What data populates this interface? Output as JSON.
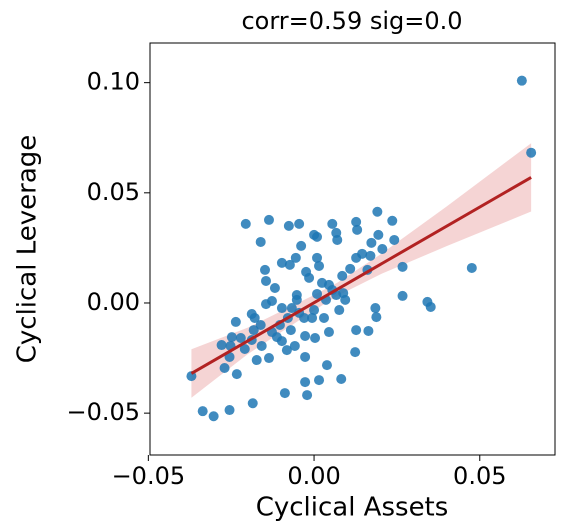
{
  "chart_data": {
    "type": "scatter",
    "title": "corr=0.59 sig=0.0",
    "x_label": "Cyclical Assets",
    "y_label": "Cyclical Leverage",
    "xlim": [
      -0.0495,
      0.0727
    ],
    "ylim": [
      -0.069,
      0.118
    ],
    "xticks": [
      {
        "value": -0.05,
        "label": "−0.05"
      },
      {
        "value": 0,
        "label": "0.00"
      },
      {
        "value": 0.05,
        "label": "0.05"
      }
    ],
    "yticks": [
      {
        "value": -0.05,
        "label": "−0.05"
      },
      {
        "value": 0,
        "label": "0.00"
      },
      {
        "value": 0.05,
        "label": "0.05"
      },
      {
        "value": 0.1,
        "label": "0.10"
      }
    ],
    "points": {
      "color": "#1f77b4",
      "x": [
        0.0627,
        0.0655,
        -0.037,
        -0.0336,
        -0.0303,
        -0.0255,
        -0.0185,
        -0.0206,
        -0.0136,
        -0.0076,
        -0.0045,
        -0.0161,
        0.0,
        0.0009,
        0.0055,
        0.0067,
        0.007,
        0.0127,
        0.013,
        0.0191,
        0.0194,
        0.0236,
        0.0242,
        0.0173,
        0.0206,
        0.0267,
        0.0476,
        0.0267,
        0.0342,
        0.0352,
        0.0185,
        0.0188,
        0.0164,
        0.0127,
        0.0124,
        0.0082,
        0.0039,
        0.0015,
        -0.0027,
        -0.0027,
        -0.0088,
        -0.0021,
        -0.0136,
        -0.0158,
        -0.0173,
        -0.0209,
        -0.0252,
        -0.0255,
        -0.027,
        -0.0233,
        -0.0127,
        -0.0127,
        -0.0148,
        -0.0145,
        -0.0118,
        -0.0097,
        -0.0073,
        -0.0055,
        -0.0039,
        -0.0024,
        -0.0015,
        0.0009,
        0.0015,
        0.0024,
        0.0045,
        0.0055,
        0.0067,
        0.0085,
        0.0109,
        0.0127,
        0.0145,
        0.017,
        0.0161,
        0.0094,
        0.0088,
        0.0076,
        0.0036,
        0.0009,
        0.0,
        -0.003,
        -0.0052,
        -0.0067,
        -0.0079,
        -0.0103,
        -0.0097,
        -0.0082,
        -0.0058,
        -0.0112,
        -0.007,
        -0.0052,
        -0.0045,
        -0.0006,
        0.003,
        0.0045,
        0.0003,
        -0.0027,
        -0.0161,
        -0.0182,
        -0.0188,
        -0.0179,
        -0.0221,
        -0.0248,
        -0.0279,
        -0.0188,
        -0.0236,
        -0.0145,
        -0.0097
      ],
      "y": [
        0.1009,
        0.0682,
        -0.0332,
        -0.0491,
        -0.0514,
        -0.0486,
        -0.0455,
        0.0359,
        0.0377,
        0.035,
        0.0359,
        0.0277,
        0.0309,
        0.03,
        0.0359,
        0.0318,
        0.0286,
        0.0368,
        0.0332,
        0.0414,
        0.0309,
        0.0373,
        0.0286,
        0.0273,
        0.0245,
        0.0164,
        0.0159,
        0.0032,
        0.0005,
        -0.0018,
        -0.0023,
        -0.0064,
        -0.0127,
        -0.0123,
        -0.0223,
        -0.0345,
        -0.0282,
        -0.035,
        -0.0359,
        -0.0245,
        -0.0409,
        -0.0418,
        -0.025,
        -0.0195,
        -0.0259,
        -0.0209,
        -0.0195,
        -0.0245,
        -0.0295,
        -0.0323,
        -0.0132,
        0.0009,
        0.015,
        0.01,
        0.0068,
        0.0182,
        0.0173,
        0.0205,
        0.0259,
        0.0141,
        0.0114,
        0.0205,
        0.0168,
        0.0091,
        0.0082,
        0.0059,
        0.0036,
        0.0123,
        0.0155,
        0.0205,
        0.0223,
        0.0214,
        0.015,
        0.0014,
        0.0045,
        -0.0032,
        0.0014,
        0.0041,
        -0.0032,
        -0.0068,
        0.0014,
        -0.0023,
        -0.0068,
        -0.01,
        -0.0173,
        -0.0214,
        -0.0195,
        -0.0155,
        -0.0123,
        0.0036,
        -0.0045,
        -0.0068,
        -0.0068,
        -0.0132,
        -0.0159,
        -0.015,
        -0.01,
        -0.0123,
        -0.0168,
        -0.0068,
        -0.0159,
        -0.0155,
        -0.0191,
        -0.005,
        -0.0086,
        -0.0005,
        -0.0023
      ]
    },
    "fit": {
      "color": "#b22222",
      "x": [
        -0.037,
        0.0655
      ],
      "y": [
        -0.032,
        0.057
      ]
    },
    "band": {
      "color": "#e8a0a0",
      "x": [
        -0.037,
        -0.02,
        0,
        0.007,
        0.02,
        0.04,
        0.0655
      ],
      "lower": [
        -0.043,
        -0.0232,
        -0.0034,
        0.0032,
        0.013,
        0.0258,
        0.0415
      ],
      "upper": [
        -0.021,
        -0.0112,
        0.0036,
        0.0092,
        0.022,
        0.0438,
        0.0725
      ]
    }
  }
}
